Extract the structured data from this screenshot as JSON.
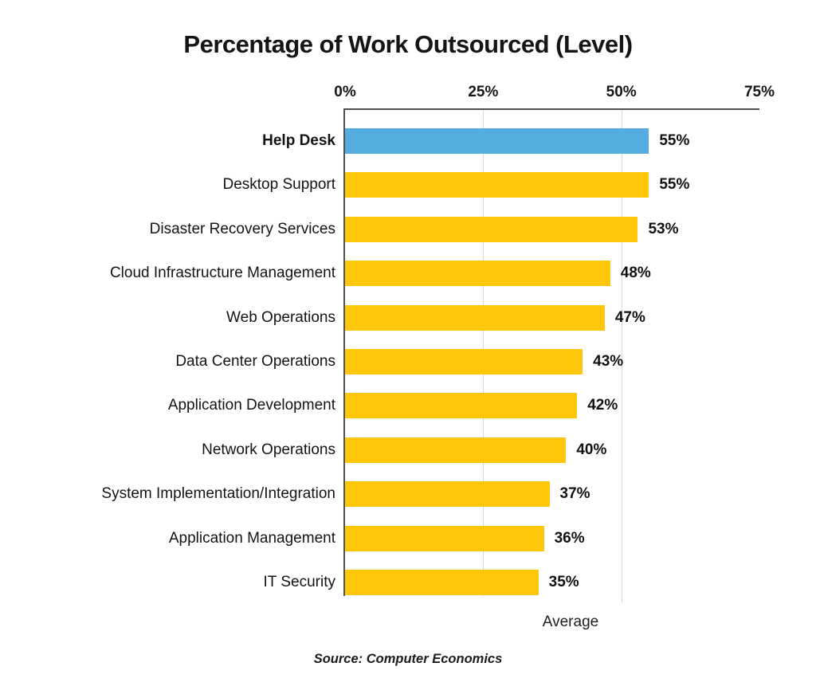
{
  "page": {
    "title": "Percentage of Work Outsourced (Level)"
  },
  "chart_data": {
    "type": "bar",
    "orientation": "horizontal",
    "title": "Percentage of Work Outsourced (Level)",
    "categories": [
      "Help Desk",
      "Desktop Support",
      "Disaster Recovery Services",
      "Cloud Infrastructure Management",
      "Web Operations",
      "Data Center Operations",
      "Application Development",
      "Network Operations",
      "System Implementation/Integration",
      "Application Management",
      "IT Security"
    ],
    "values": [
      55,
      55,
      53,
      48,
      47,
      43,
      42,
      40,
      37,
      36,
      35
    ],
    "data_labels": [
      "55%",
      "55%",
      "53%",
      "48%",
      "47%",
      "43%",
      "42%",
      "40%",
      "37%",
      "36%",
      "35%"
    ],
    "unit": "%",
    "highlight_category": "Help Desk",
    "highlight_index": 0,
    "x_ticks": [
      "0%",
      "25%",
      "50%",
      "75%"
    ],
    "x_tick_values": [
      0,
      25,
      50,
      75
    ],
    "xlim": [
      0,
      75
    ],
    "x_axis_title": "Average",
    "legend": "none",
    "grid": "vertical gridlines at 25% and 50%",
    "colors": {
      "bar": "#FFC60A",
      "highlight_bar": "#55ACE0",
      "gridline": "#d6d6d6",
      "axis": "#4f4f4f",
      "text": "#151515"
    }
  },
  "source": {
    "text": "Source: Computer Economics"
  }
}
